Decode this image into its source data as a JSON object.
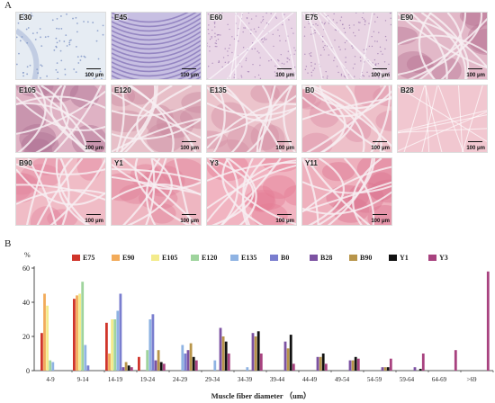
{
  "figure": {
    "panel_a_label": "A",
    "panel_b_label": "B",
    "scale_bar_label": "100 μm",
    "micrographs": [
      {
        "label": "E30",
        "bg": "#e6ecf3",
        "stain": "#7f95c6",
        "style": "loose"
      },
      {
        "label": "E45",
        "bg": "#c7bfe2",
        "stain": "#6a55a8",
        "style": "fibrous"
      },
      {
        "label": "E60",
        "bg": "#e9d6e6",
        "stain": "#a07cb1",
        "style": "dense"
      },
      {
        "label": "E75",
        "bg": "#e8d4e3",
        "stain": "#9c77ad",
        "style": "dense"
      },
      {
        "label": "E90",
        "bg": "#e2b8c8",
        "stain": "#b87594",
        "style": "bundles"
      },
      {
        "label": "E105",
        "bg": "#dfb2c4",
        "stain": "#b07094",
        "style": "bundles"
      },
      {
        "label": "E120",
        "bg": "#e7bfc8",
        "stain": "#c98aa0",
        "style": "bundles"
      },
      {
        "label": "E135",
        "bg": "#ecc4cc",
        "stain": "#d590a5",
        "style": "bundles"
      },
      {
        "label": "B0",
        "bg": "#eec0c9",
        "stain": "#dc8fa6",
        "style": "bundles"
      },
      {
        "label": "B28",
        "bg": "#f1c7d0",
        "stain": "#e59ab0",
        "style": "smooth"
      },
      {
        "label": "B90",
        "bg": "#f0bcc6",
        "stain": "#e2869e",
        "style": "bundles"
      },
      {
        "label": "Y1",
        "bg": "#eeb6c1",
        "stain": "#df8198",
        "style": "bundles"
      },
      {
        "label": "Y3",
        "bg": "#f1b4c1",
        "stain": "#e57d95",
        "style": "bundles"
      },
      {
        "label": "Y11",
        "bg": "#eeb0bd",
        "stain": "#dc7590",
        "style": "bundles"
      }
    ]
  },
  "chart_data": {
    "type": "bar",
    "y_unit_label": "%",
    "xlabel": "Muscle fiber diameter （um）",
    "ylabel": "",
    "ylim": [
      0,
      60
    ],
    "yticks": [
      0,
      20,
      40,
      60
    ],
    "grid": false,
    "legend_position": "top",
    "categories": [
      "4-9",
      "9-14",
      "14-19",
      "19-24",
      "24-29",
      "29-34",
      "34-39",
      "39-44",
      "44-49",
      "49-54",
      "54-59",
      "59-64",
      "64-69",
      ">69"
    ],
    "series": [
      {
        "name": "E75",
        "color": "#d0352b",
        "values": [
          22,
          42,
          28,
          8,
          0,
          0,
          0,
          0,
          0,
          0,
          0,
          0,
          0,
          0
        ]
      },
      {
        "name": "E90",
        "color": "#f2ab5a",
        "values": [
          45,
          44,
          10,
          0,
          0,
          0,
          0,
          0,
          0,
          0,
          0,
          0,
          0,
          0
        ]
      },
      {
        "name": "E105",
        "color": "#f3eb8c",
        "values": [
          38,
          45,
          30,
          0,
          0,
          0,
          0,
          0,
          0,
          0,
          0,
          0,
          0,
          0
        ]
      },
      {
        "name": "E120",
        "color": "#9fd49d",
        "values": [
          6,
          52,
          30,
          12,
          0,
          0,
          0,
          0,
          0,
          0,
          0,
          0,
          0,
          0
        ]
      },
      {
        "name": "E135",
        "color": "#8fb3e3",
        "values": [
          5,
          15,
          35,
          30,
          15,
          6,
          2,
          0,
          0,
          0,
          0,
          0,
          0,
          0
        ]
      },
      {
        "name": "B0",
        "color": "#7a7ecf",
        "values": [
          0,
          3,
          45,
          33,
          10,
          0,
          0,
          0,
          0,
          0,
          0,
          0,
          0,
          0
        ]
      },
      {
        "name": "B28",
        "color": "#7c52a2",
        "values": [
          0,
          0,
          2,
          6,
          12,
          25,
          22,
          17,
          8,
          6,
          2,
          2,
          0,
          0
        ]
      },
      {
        "name": "B90",
        "color": "#b8954a",
        "values": [
          0,
          0,
          5,
          12,
          16,
          20,
          20,
          13,
          8,
          6,
          2,
          0,
          0,
          0
        ]
      },
      {
        "name": "Y1",
        "color": "#111111",
        "values": [
          0,
          0,
          3,
          5,
          8,
          17,
          23,
          21,
          10,
          8,
          2,
          1,
          0,
          0
        ]
      },
      {
        "name": "Y3",
        "color": "#a8427f",
        "values": [
          0,
          0,
          2,
          4,
          6,
          10,
          10,
          4,
          4,
          7,
          7,
          10,
          12,
          58
        ]
      }
    ]
  }
}
